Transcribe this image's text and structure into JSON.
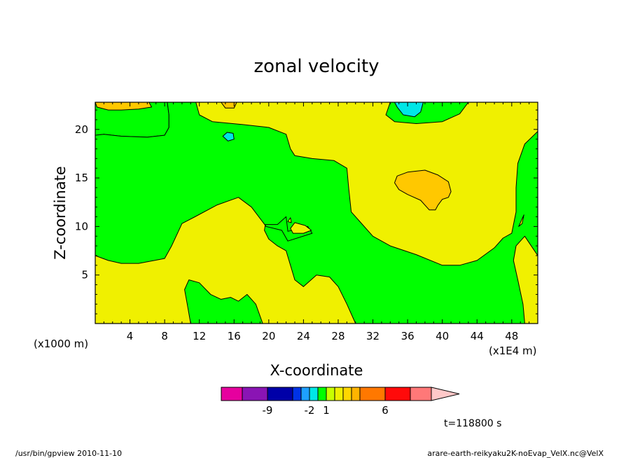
{
  "chart_data": {
    "type": "contour",
    "title": "zonal velocity",
    "xlabel": "X-coordinate",
    "ylabel": "Z-coordinate",
    "x_unit_left": "(x1000 m)",
    "x_unit_right": "(x1E4 m)",
    "xlim": [
      0,
      51
    ],
    "ylim": [
      0,
      22.8
    ],
    "xticks": [
      4,
      8,
      12,
      16,
      20,
      24,
      28,
      32,
      36,
      40,
      44,
      48
    ],
    "yticks": [
      5,
      10,
      15,
      20
    ],
    "time_label": "t=118800 s",
    "colorbar": {
      "colors": [
        "#e6009e",
        "#8a14b4",
        "#0000a8",
        "#0032e6",
        "#1ea0ff",
        "#00e6e6",
        "#00ff00",
        "#c8ff00",
        "#f0f000",
        "#ffd700",
        "#ffb400",
        "#ff7800",
        "#ff0a0a",
        "#ff7878",
        "#ffc8c8"
      ],
      "tick_labels": [
        {
          "label": "-9",
          "after_index": 1
        },
        {
          "label": "-2",
          "after_index": 4
        },
        {
          "label": "1",
          "after_index": 6
        },
        {
          "label": "6",
          "after_index": 11
        }
      ]
    },
    "colors": {
      "green": "#00ff00",
      "yellow": "#f0f000",
      "orange": "#ffc800",
      "cyan": "#00e6e6",
      "line": "#000000"
    },
    "regions": [
      {
        "fill": "green",
        "points": [
          [
            0,
            22.8
          ],
          [
            0,
            19.4
          ],
          [
            1,
            19.5
          ],
          [
            3,
            19.3
          ],
          [
            6,
            19.2
          ],
          [
            8,
            19.4
          ],
          [
            8.5,
            20.2
          ],
          [
            8.5,
            21.5
          ],
          [
            8.3,
            22.8
          ]
        ]
      },
      {
        "fill": "green",
        "points": [
          [
            11.6,
            22.8
          ],
          [
            12,
            21.5
          ],
          [
            13.5,
            20.8
          ],
          [
            17,
            20.5
          ],
          [
            20,
            20.2
          ],
          [
            22,
            19.5
          ],
          [
            22.5,
            18
          ],
          [
            23,
            17.3
          ],
          [
            25,
            17
          ],
          [
            27.5,
            16.8
          ],
          [
            29,
            16
          ],
          [
            29.2,
            14
          ],
          [
            29.5,
            11.5
          ],
          [
            30.5,
            10.5
          ],
          [
            32,
            9
          ],
          [
            34,
            8
          ],
          [
            37,
            7.1
          ],
          [
            40,
            6
          ],
          [
            42,
            6
          ],
          [
            44,
            6.5
          ],
          [
            46,
            7.8
          ],
          [
            47,
            8.8
          ],
          [
            48,
            9.3
          ],
          [
            48.5,
            11.5
          ],
          [
            48.5,
            14
          ],
          [
            48.7,
            16.5
          ],
          [
            49.5,
            18.5
          ],
          [
            51,
            19.8
          ],
          [
            51,
            7
          ],
          [
            49.5,
            9
          ],
          [
            48.5,
            8
          ],
          [
            48.2,
            6.5
          ],
          [
            48.7,
            4.5
          ],
          [
            49.3,
            2
          ],
          [
            49.5,
            0
          ],
          [
            30,
            0
          ],
          [
            29,
            2
          ],
          [
            28,
            3.8
          ],
          [
            27,
            4.8
          ],
          [
            25.5,
            5
          ],
          [
            24,
            3.8
          ],
          [
            23,
            4.5
          ],
          [
            22.5,
            6
          ],
          [
            22,
            7.5
          ],
          [
            21,
            8
          ],
          [
            20,
            8.7
          ],
          [
            19.5,
            9.6
          ],
          [
            19.6,
            10.2
          ],
          [
            21,
            10.2
          ],
          [
            22,
            11
          ],
          [
            22.2,
            9.5
          ],
          [
            24.5,
            10
          ],
          [
            25,
            9.3
          ],
          [
            22.2,
            8.5
          ],
          [
            21.5,
            9.6
          ],
          [
            19.7,
            10
          ],
          [
            18,
            12
          ],
          [
            16.5,
            13
          ],
          [
            14,
            12.2
          ],
          [
            11.5,
            11
          ],
          [
            10,
            10.3
          ],
          [
            8.8,
            8
          ],
          [
            8,
            6.7
          ],
          [
            5,
            6.2
          ],
          [
            3,
            6.2
          ],
          [
            1.5,
            6.5
          ],
          [
            0,
            7
          ],
          [
            0,
            19.4
          ],
          [
            1,
            19.5
          ],
          [
            3,
            19.3
          ],
          [
            6,
            19.2
          ],
          [
            8,
            19.4
          ],
          [
            8.5,
            20.2
          ],
          [
            8.5,
            21.5
          ],
          [
            8.3,
            22.8
          ]
        ]
      },
      {
        "fill": "green",
        "points": [
          [
            11,
            0
          ],
          [
            10.6,
            2
          ],
          [
            10.3,
            3.5
          ],
          [
            10.8,
            4.5
          ],
          [
            12,
            4.2
          ],
          [
            13.3,
            3
          ],
          [
            14.5,
            2.5
          ],
          [
            15.6,
            2.7
          ],
          [
            16.5,
            2.3
          ],
          [
            17.5,
            3
          ],
          [
            18.5,
            2
          ],
          [
            19.3,
            0
          ]
        ]
      },
      {
        "fill": "green",
        "points": [
          [
            34,
            22.8
          ],
          [
            33.5,
            21.5
          ],
          [
            34.5,
            20.8
          ],
          [
            37,
            20.6
          ],
          [
            40,
            20.8
          ],
          [
            42,
            21.6
          ],
          [
            43,
            22.8
          ]
        ]
      },
      {
        "fill": "orange",
        "points": [
          [
            0,
            22.8
          ],
          [
            0.2,
            22.3
          ],
          [
            1.5,
            22
          ],
          [
            3,
            22
          ],
          [
            5,
            22.1
          ],
          [
            6.5,
            22.3
          ],
          [
            6.2,
            22.8
          ]
        ]
      },
      {
        "fill": "orange",
        "points": [
          [
            14.5,
            22.8
          ],
          [
            15,
            22.2
          ],
          [
            16,
            22.2
          ],
          [
            16.3,
            22.8
          ]
        ]
      },
      {
        "fill": "orange",
        "points": [
          [
            34.5,
            14.5
          ],
          [
            34.8,
            15.2
          ],
          [
            36,
            15.6
          ],
          [
            38,
            15.8
          ],
          [
            39.5,
            15.3
          ],
          [
            40.7,
            14.6
          ],
          [
            41,
            13.6
          ],
          [
            40.7,
            13
          ],
          [
            40,
            12.8
          ],
          [
            39.5,
            12.2
          ],
          [
            39.2,
            11.7
          ],
          [
            38.5,
            11.7
          ],
          [
            37.5,
            12.7
          ],
          [
            36,
            13.3
          ],
          [
            35,
            13.8
          ]
        ]
      },
      {
        "fill": "cyan",
        "points": [
          [
            34.5,
            22.8
          ],
          [
            34.8,
            22.3
          ],
          [
            35.5,
            21.5
          ],
          [
            36.8,
            21.3
          ],
          [
            37.5,
            21.8
          ],
          [
            37.8,
            22.8
          ]
        ]
      },
      {
        "fill": "cyan",
        "points": [
          [
            14.7,
            19.3
          ],
          [
            15.2,
            19.7
          ],
          [
            15.9,
            19.6
          ],
          [
            16,
            19
          ],
          [
            15.3,
            18.8
          ]
        ]
      },
      {
        "fill": "yellow",
        "points": [
          [
            22.5,
            9.8
          ],
          [
            23,
            10.4
          ],
          [
            24.2,
            10.1
          ],
          [
            24.9,
            9.6
          ],
          [
            24,
            9.3
          ],
          [
            22.8,
            9.3
          ]
        ]
      },
      {
        "fill": "yellow",
        "points": [
          [
            22.2,
            10.5
          ],
          [
            22.5,
            10.9
          ],
          [
            22.6,
            10.4
          ]
        ]
      },
      {
        "fill": "yellow",
        "points": [
          [
            48.8,
            10
          ],
          [
            49.4,
            11.2
          ],
          [
            49.2,
            10.3
          ]
        ]
      }
    ]
  },
  "footer": {
    "left": "/usr/bin/gpview   2010-11-10",
    "right": "arare-earth-reikyaku2K-noEvap_VelX.nc@VelX"
  }
}
